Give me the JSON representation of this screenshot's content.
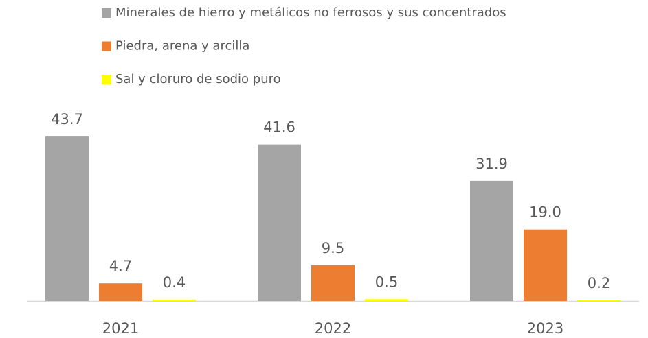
{
  "chart_data": {
    "type": "bar",
    "categories": [
      "2021",
      "2022",
      "2023"
    ],
    "series": [
      {
        "name": "Minerales de hierro y metálicos no ferrosos y sus concentrados",
        "color": "#a5a5a5",
        "values": [
          43.7,
          41.6,
          31.9
        ],
        "value_labels": [
          "43.7",
          "41.6",
          "31.9"
        ]
      },
      {
        "name": "Piedra, arena y arcilla",
        "color": "#ed7d31",
        "values": [
          4.7,
          9.5,
          19.0
        ],
        "value_labels": [
          "4.7",
          "9.5",
          "19.0"
        ]
      },
      {
        "name": "Sal y cloruro de sodio puro",
        "color": "#ffff00",
        "values": [
          0.4,
          0.5,
          0.2
        ],
        "value_labels": [
          "0.4",
          "0.5",
          "0.2"
        ]
      }
    ],
    "legend": "top"
  }
}
